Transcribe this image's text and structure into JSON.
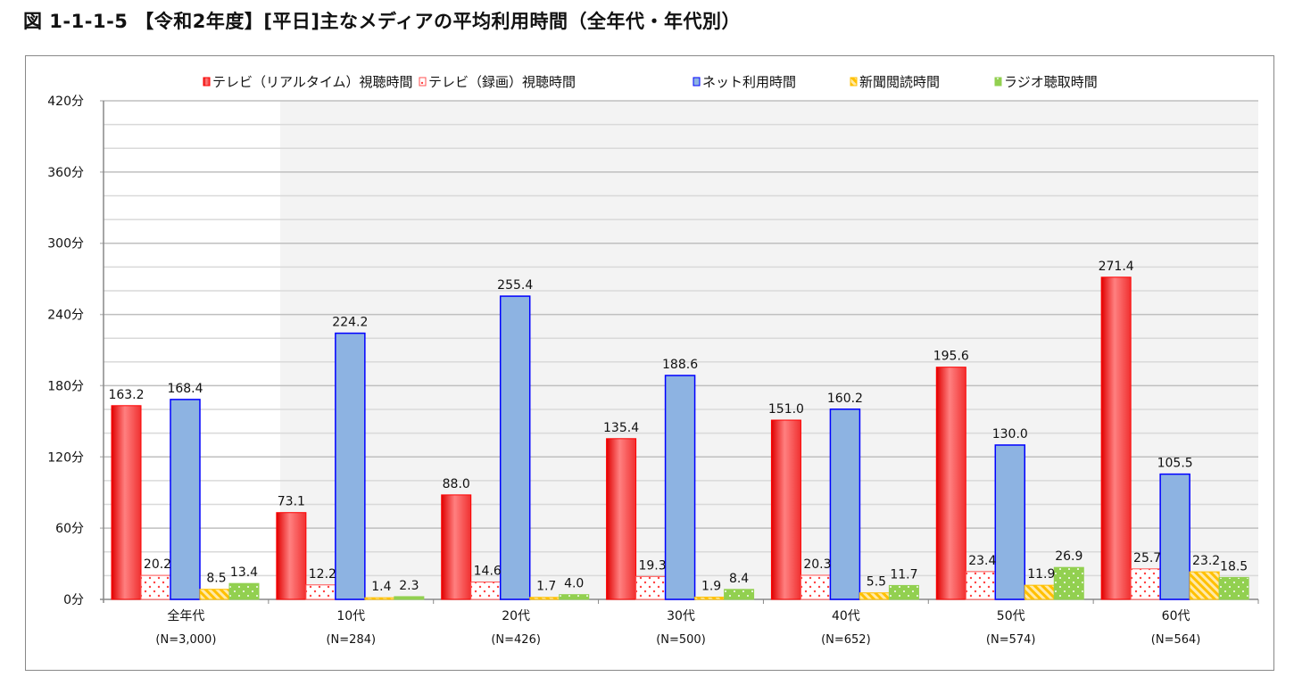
{
  "chart_data": {
    "type": "bar",
    "title": "図 1-1-1-5 【令和2年度】[平日]主なメディアの平均利用時間（全年代・年代別）",
    "categories": [
      "全年代",
      "10代",
      "20代",
      "30代",
      "40代",
      "50代",
      "60代"
    ],
    "category_sublabels": [
      "(N=3,000)",
      "(N=284)",
      "(N=426)",
      "(N=500)",
      "(N=652)",
      "(N=574)",
      "(N=564)"
    ],
    "series": [
      {
        "name": "テレビ（リアルタイム）視聴時間",
        "color": "#ff0000",
        "values": [
          163.2,
          73.1,
          88.0,
          135.4,
          151.0,
          195.6,
          271.4
        ]
      },
      {
        "name": "テレビ（録画）視聴時間",
        "color": "#ff5050",
        "values": [
          20.2,
          12.2,
          14.6,
          19.3,
          20.3,
          23.4,
          25.7
        ]
      },
      {
        "name": "ネット利用時間",
        "color": "#8db3e2",
        "values": [
          168.4,
          224.2,
          255.4,
          188.6,
          160.2,
          130.0,
          105.5
        ]
      },
      {
        "name": "新聞閲読時間",
        "color": "#ffc000",
        "values": [
          8.5,
          1.4,
          1.7,
          1.9,
          5.5,
          11.9,
          23.2
        ]
      },
      {
        "name": "ラジオ聴取時間",
        "color": "#92d050",
        "values": [
          13.4,
          2.3,
          4.0,
          8.4,
          11.7,
          26.9,
          18.5
        ]
      }
    ],
    "yticks": [
      "0分",
      "60分",
      "120分",
      "180分",
      "240分",
      "300分",
      "360分",
      "420分"
    ],
    "ylim": [
      0,
      420
    ],
    "xlabel": "",
    "ylabel": "",
    "grid": true,
    "legend": "top"
  }
}
